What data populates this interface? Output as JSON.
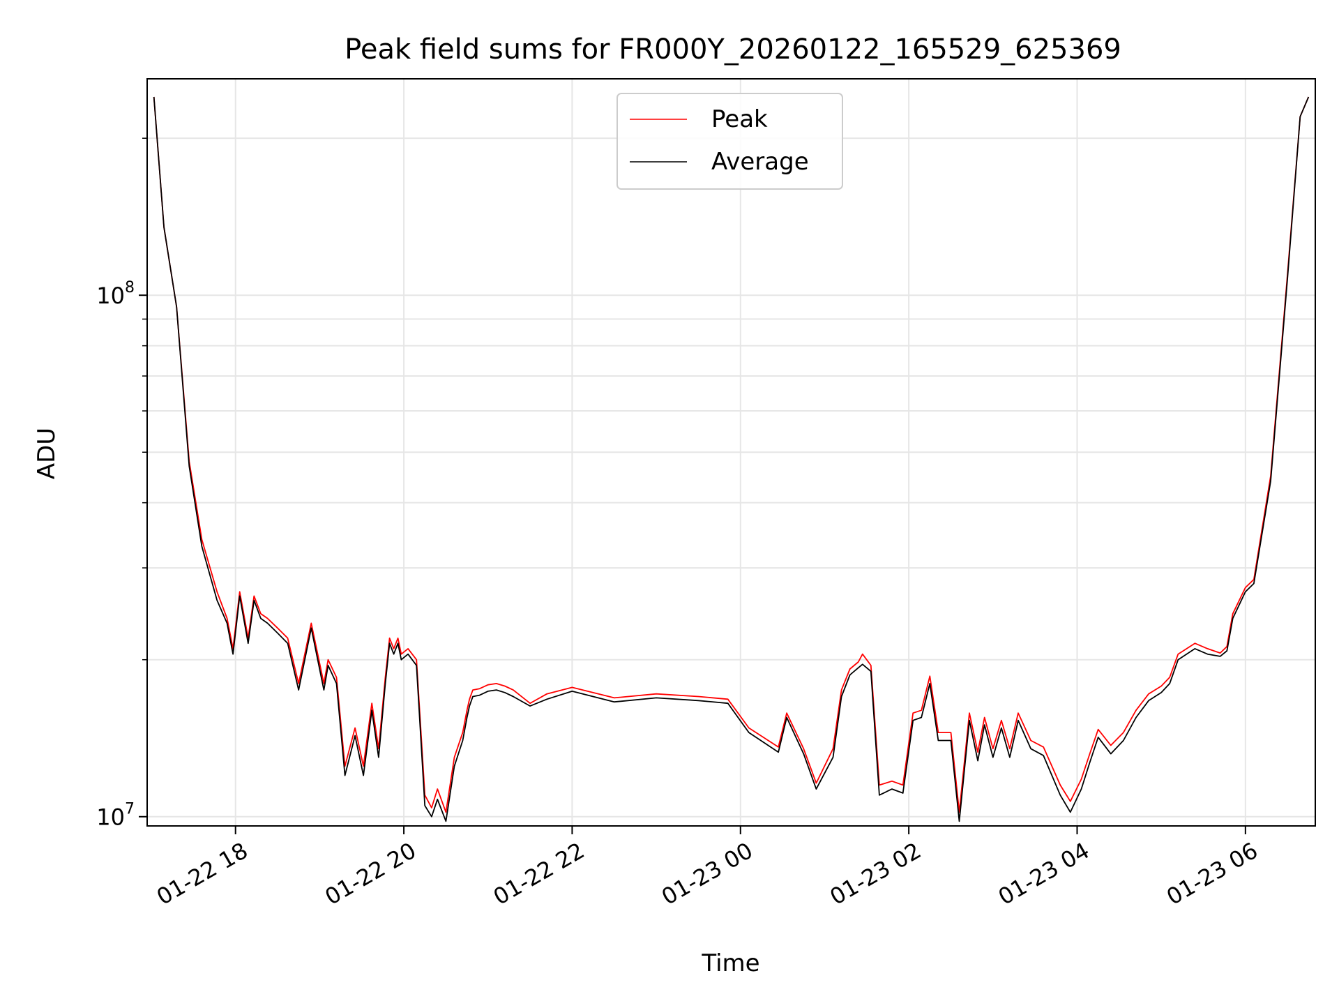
{
  "chart_data": {
    "type": "line",
    "title": "Peak field sums for FR000Y_20260122_165529_625369",
    "xlabel": "Time",
    "ylabel": "ADU",
    "yscale": "log",
    "ylim": [
      9600000,
      260000000
    ],
    "x_unit": "hours since 2026-01-22 00:00",
    "xlim": [
      16.95,
      30.83
    ],
    "x_ticks": [
      {
        "value": 18,
        "label": "01-22 18"
      },
      {
        "value": 20,
        "label": "01-22 20"
      },
      {
        "value": 22,
        "label": "01-22 22"
      },
      {
        "value": 24,
        "label": "01-23 00"
      },
      {
        "value": 26,
        "label": "01-23 02"
      },
      {
        "value": 28,
        "label": "01-23 04"
      },
      {
        "value": 30,
        "label": "01-23 06"
      }
    ],
    "y_ticks": [
      {
        "value": 10000000,
        "label_base": "10",
        "label_exp": "7"
      },
      {
        "value": 100000000,
        "label_base": "10",
        "label_exp": "8"
      }
    ],
    "grid": true,
    "legend_position": "top-center",
    "colors": {
      "peak": "#ff0000",
      "average": "#000000"
    },
    "series": [
      {
        "name": "Peak",
        "color": "#ff0000",
        "x": [
          17.03,
          17.15,
          17.3,
          17.45,
          17.6,
          17.78,
          17.9,
          17.97,
          18.05,
          18.15,
          18.22,
          18.3,
          18.38,
          18.5,
          18.62,
          18.75,
          18.9,
          19.05,
          19.1,
          19.2,
          19.3,
          19.42,
          19.52,
          19.62,
          19.7,
          19.78,
          19.83,
          19.88,
          19.93,
          19.97,
          20.05,
          20.15,
          20.25,
          20.33,
          20.4,
          20.5,
          20.6,
          20.7,
          20.75,
          20.78,
          20.82,
          20.9,
          21.0,
          21.1,
          21.2,
          21.3,
          21.5,
          21.7,
          22.0,
          22.5,
          23.0,
          23.5,
          23.85,
          24.1,
          24.45,
          24.55,
          24.75,
          24.9,
          25.1,
          25.2,
          25.3,
          25.4,
          25.45,
          25.55,
          25.65,
          25.8,
          25.93,
          26.05,
          26.15,
          26.25,
          26.35,
          26.5,
          26.6,
          26.72,
          26.82,
          26.9,
          27.0,
          27.1,
          27.2,
          27.3,
          27.45,
          27.6,
          27.8,
          27.92,
          28.05,
          28.15,
          28.25,
          28.4,
          28.55,
          28.7,
          28.85,
          29.0,
          29.1,
          29.2,
          29.4,
          29.55,
          29.7,
          29.78,
          29.85,
          30.0,
          30.1,
          30.3,
          30.5,
          30.65,
          30.75
        ],
        "y": [
          240000000,
          135000000,
          95000000,
          48000000,
          34000000,
          27000000,
          24000000,
          21000000,
          27000000,
          22000000,
          26500000,
          24500000,
          24000000,
          23000000,
          22000000,
          18000000,
          23500000,
          18000000,
          20000000,
          18500000,
          12500000,
          14800000,
          12500000,
          16500000,
          13500000,
          18500000,
          22000000,
          21000000,
          22000000,
          20500000,
          21000000,
          20000000,
          11000000,
          10400000,
          11300000,
          10200000,
          13000000,
          14500000,
          16000000,
          16800000,
          17500000,
          17600000,
          17900000,
          18000000,
          17800000,
          17500000,
          16500000,
          17200000,
          17700000,
          16900000,
          17200000,
          17000000,
          16800000,
          14800000,
          13600000,
          15800000,
          13500000,
          11600000,
          13500000,
          17500000,
          19200000,
          19800000,
          20500000,
          19500000,
          11500000,
          11700000,
          11500000,
          15800000,
          16000000,
          18600000,
          14500000,
          14500000,
          10200000,
          15800000,
          13300000,
          15500000,
          13500000,
          15300000,
          13500000,
          15800000,
          14000000,
          13600000,
          11500000,
          10700000,
          11800000,
          13200000,
          14700000,
          13700000,
          14500000,
          16000000,
          17200000,
          17800000,
          18500000,
          20500000,
          21500000,
          21000000,
          20600000,
          21200000,
          24500000,
          27500000,
          28500000,
          45000000,
          110000000,
          220000000,
          240000000
        ]
      },
      {
        "name": "Average",
        "color": "#000000",
        "x": [
          17.03,
          17.15,
          17.3,
          17.45,
          17.6,
          17.78,
          17.9,
          17.97,
          18.05,
          18.15,
          18.22,
          18.3,
          18.38,
          18.5,
          18.62,
          18.75,
          18.9,
          19.05,
          19.1,
          19.2,
          19.3,
          19.42,
          19.52,
          19.62,
          19.7,
          19.78,
          19.83,
          19.88,
          19.93,
          19.97,
          20.05,
          20.15,
          20.25,
          20.33,
          20.4,
          20.5,
          20.6,
          20.7,
          20.75,
          20.78,
          20.82,
          20.9,
          21.0,
          21.1,
          21.2,
          21.3,
          21.5,
          21.7,
          22.0,
          22.5,
          23.0,
          23.5,
          23.85,
          24.1,
          24.45,
          24.55,
          24.75,
          24.9,
          25.1,
          25.2,
          25.3,
          25.4,
          25.45,
          25.55,
          25.65,
          25.8,
          25.93,
          26.05,
          26.15,
          26.25,
          26.35,
          26.5,
          26.6,
          26.72,
          26.82,
          26.9,
          27.0,
          27.1,
          27.2,
          27.3,
          27.45,
          27.6,
          27.8,
          27.92,
          28.05,
          28.15,
          28.25,
          28.4,
          28.55,
          28.7,
          28.85,
          29.0,
          29.1,
          29.2,
          29.4,
          29.55,
          29.7,
          29.78,
          29.85,
          30.0,
          30.1,
          30.3,
          30.5,
          30.65,
          30.75
        ],
        "y": [
          240000000,
          135000000,
          95000000,
          47000000,
          33000000,
          26000000,
          23500000,
          20500000,
          26500000,
          21500000,
          26000000,
          24000000,
          23500000,
          22500000,
          21500000,
          17500000,
          23000000,
          17500000,
          19500000,
          18000000,
          12000000,
          14300000,
          12000000,
          16000000,
          13000000,
          18000000,
          21500000,
          20500000,
          21500000,
          20000000,
          20500000,
          19500000,
          10500000,
          10000000,
          10800000,
          9800000,
          12500000,
          14000000,
          15500000,
          16300000,
          17000000,
          17100000,
          17400000,
          17500000,
          17300000,
          17000000,
          16300000,
          16800000,
          17400000,
          16600000,
          16900000,
          16700000,
          16500000,
          14500000,
          13300000,
          15500000,
          13200000,
          11300000,
          13000000,
          17000000,
          18700000,
          19300000,
          19600000,
          19000000,
          11000000,
          11300000,
          11100000,
          15300000,
          15500000,
          18000000,
          14000000,
          14000000,
          9800000,
          15300000,
          12800000,
          15000000,
          13000000,
          14800000,
          13000000,
          15300000,
          13500000,
          13100000,
          11000000,
          10200000,
          11300000,
          12700000,
          14200000,
          13200000,
          14000000,
          15500000,
          16700000,
          17300000,
          18000000,
          20000000,
          21000000,
          20500000,
          20300000,
          20800000,
          24000000,
          27000000,
          28000000,
          44000000,
          108000000,
          220000000,
          240000000
        ]
      }
    ]
  }
}
